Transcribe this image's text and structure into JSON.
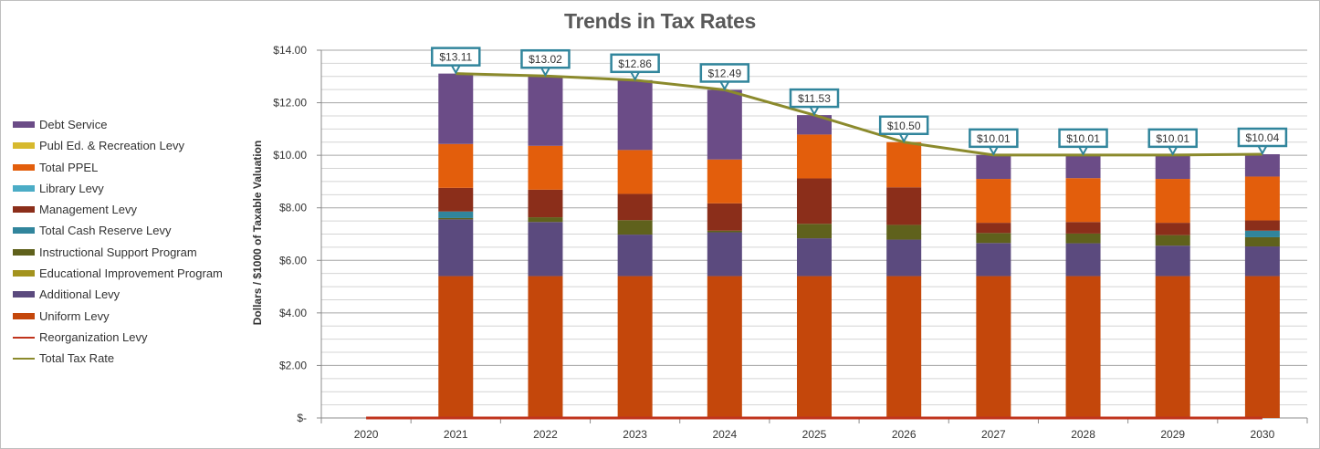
{
  "chart_data": {
    "type": "bar",
    "stacked": true,
    "title": "Trends in Tax Rates",
    "xlabel": "",
    "ylabel": "Dollars / $1000 of Taxable Valuation",
    "ylim": [
      0,
      14
    ],
    "yticks": [
      0,
      2,
      4,
      6,
      8,
      10,
      12,
      14
    ],
    "ytick_labels": [
      "$-",
      "$2.00",
      "$4.00",
      "$6.00",
      "$8.00",
      "$10.00",
      "$12.00",
      "$14.00"
    ],
    "grid": true,
    "legend_position": "left",
    "categories": [
      "2020",
      "2021",
      "2022",
      "2023",
      "2024",
      "2025",
      "2026",
      "2027",
      "2028",
      "2029",
      "2030"
    ],
    "series": [
      {
        "name": "Uniform Levy",
        "color": "#C4470B",
        "values": [
          0,
          5.4,
          5.4,
          5.4,
          5.4,
          5.4,
          5.4,
          5.4,
          5.4,
          5.4,
          5.4
        ]
      },
      {
        "name": "Additional Levy",
        "color": "#5B4A7E",
        "values": [
          0,
          2.16,
          2.06,
          1.58,
          1.67,
          1.44,
          1.39,
          1.26,
          1.25,
          1.16,
          1.13
        ]
      },
      {
        "name": "Educational Improvement Program",
        "color": "#A3931E",
        "values": [
          0,
          0,
          0,
          0,
          0,
          0,
          0,
          0,
          0,
          0,
          0
        ]
      },
      {
        "name": "Instructional Support Program",
        "color": "#5F611C",
        "values": [
          0,
          0.05,
          0.18,
          0.55,
          0.06,
          0.55,
          0.56,
          0.38,
          0.37,
          0.4,
          0.35
        ]
      },
      {
        "name": "Total Cash Reserve Levy",
        "color": "#31859C",
        "values": [
          0,
          0.25,
          0,
          0,
          0,
          0,
          0,
          0,
          0,
          0,
          0.25
        ]
      },
      {
        "name": "Management Levy",
        "color": "#8B2E1A",
        "values": [
          0,
          0.9,
          1.05,
          1.0,
          1.04,
          1.73,
          1.43,
          0.39,
          0.44,
          0.47,
          0.39
        ]
      },
      {
        "name": "Library Levy",
        "color": "#4BACC6",
        "values": [
          0,
          0,
          0,
          0,
          0,
          0,
          0,
          0,
          0,
          0,
          0
        ]
      },
      {
        "name": "Total PPEL",
        "color": "#E35E0C",
        "values": [
          0,
          1.67,
          1.67,
          1.67,
          1.67,
          1.67,
          1.72,
          1.67,
          1.67,
          1.67,
          1.67
        ]
      },
      {
        "name": "Publ Ed. & Recreation Levy",
        "color": "#D7B92E",
        "values": [
          0,
          0,
          0,
          0,
          0,
          0,
          0,
          0,
          0,
          0,
          0
        ]
      },
      {
        "name": "Debt Service",
        "color": "#6B4C87",
        "values": [
          0,
          2.68,
          2.66,
          2.66,
          2.65,
          0.74,
          0,
          0.91,
          0.88,
          0.91,
          0.85
        ]
      }
    ],
    "lines": [
      {
        "name": "Reorganization Levy",
        "color": "#C0341D",
        "values": [
          0,
          0,
          0,
          0,
          0,
          0,
          0,
          0,
          0,
          0,
          0
        ]
      },
      {
        "name": "Total Tax Rate",
        "color": "#8B8A2C",
        "values": [
          null,
          13.11,
          13.02,
          12.86,
          12.49,
          11.53,
          10.5,
          10.01,
          10.01,
          10.01,
          10.04
        ]
      }
    ],
    "data_labels": [
      "",
      "$13.11",
      "$13.02",
      "$12.86",
      "$12.49",
      "$11.53",
      "$10.50",
      "$10.01",
      "$10.01",
      "$10.01",
      "$10.04"
    ],
    "legend_order": [
      "Debt Service",
      "Publ Ed. & Recreation Levy",
      "Total PPEL",
      "Library Levy",
      "Management Levy",
      "Total Cash Reserve Levy",
      "Instructional Support Program",
      "Educational Improvement Program",
      "Additional Levy",
      "Uniform Levy",
      "Reorganization Levy",
      "Total Tax Rate"
    ],
    "label_box_color": "#31859C"
  }
}
